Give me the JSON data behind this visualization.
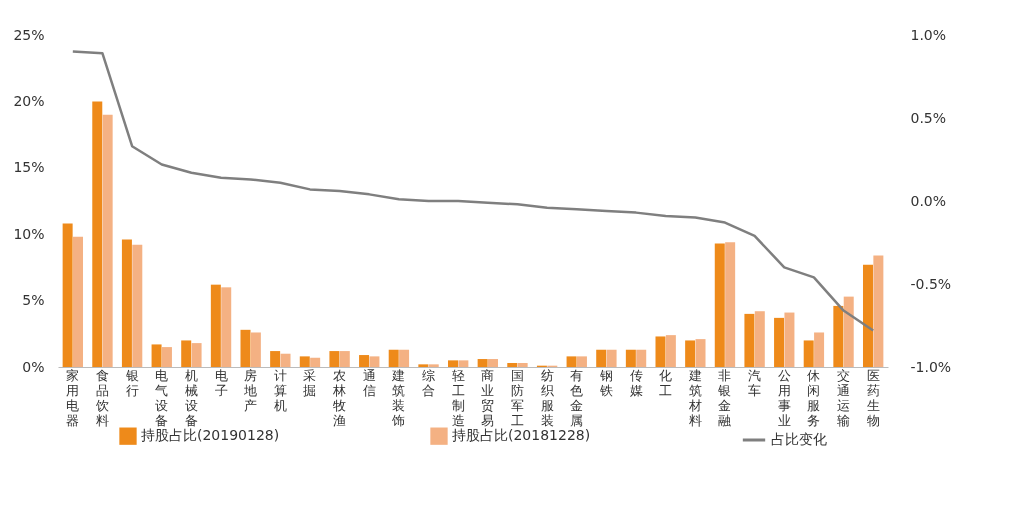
{
  "chart_data": {
    "type": "bar",
    "categories": [
      "家用电器",
      "食品饮料",
      "银行",
      "电气设备",
      "机械设备",
      "电子",
      "房地产",
      "计算机",
      "采掘",
      "农林牧渔",
      "通信",
      "建筑装饰",
      "综合",
      "轻工制造",
      "商业贸易",
      "国防军工",
      "纺织服装",
      "有色金属",
      "钢铁",
      "传媒",
      "化工",
      "建筑材料",
      "非银金融",
      "汽车",
      "公用事业",
      "休闲服务",
      "交通运输",
      "医药生物"
    ],
    "series": [
      {
        "name": "持股占比(20190128)",
        "color": "#ee8a1a",
        "values": [
          10.8,
          20.0,
          9.6,
          1.7,
          2.0,
          6.2,
          2.8,
          1.2,
          0.8,
          1.2,
          0.9,
          1.3,
          0.2,
          0.5,
          0.6,
          0.3,
          0.1,
          0.8,
          1.3,
          1.3,
          2.3,
          2.0,
          9.3,
          4.0,
          3.7,
          2.0,
          4.6,
          7.7
        ]
      },
      {
        "name": "持股占比(20181228)",
        "color": "#f4b183",
        "values": [
          9.8,
          19.0,
          9.2,
          1.5,
          1.8,
          6.0,
          2.6,
          1.0,
          0.7,
          1.2,
          0.8,
          1.3,
          0.2,
          0.5,
          0.6,
          0.3,
          0.1,
          0.8,
          1.3,
          1.3,
          2.4,
          2.1,
          9.4,
          4.2,
          4.1,
          2.6,
          5.3,
          8.4
        ]
      },
      {
        "name": "占比变化",
        "type": "line",
        "axis": "y2",
        "color": "#7f7f7f",
        "values": [
          0.9,
          0.89,
          0.33,
          0.22,
          0.17,
          0.14,
          0.13,
          0.11,
          0.07,
          0.06,
          0.04,
          0.01,
          0.0,
          0.0,
          -0.01,
          -0.02,
          -0.04,
          -0.05,
          -0.06,
          -0.07,
          -0.09,
          -0.1,
          -0.13,
          -0.21,
          -0.4,
          -0.46,
          -0.66,
          -0.78
        ]
      }
    ],
    "ylim": [
      0,
      25
    ],
    "yticks": [
      {
        "value": 0,
        "label": "0%"
      },
      {
        "value": 5,
        "label": "5%"
      },
      {
        "value": 10,
        "label": "10%"
      },
      {
        "value": 15,
        "label": "15%"
      },
      {
        "value": 20,
        "label": "20%"
      },
      {
        "value": 25,
        "label": "25%"
      }
    ],
    "y2lim": [
      -1.0,
      1.0
    ],
    "y2ticks": [
      {
        "value": -1.0,
        "label": "-1.0%"
      },
      {
        "value": -0.5,
        "label": "-0.5%"
      },
      {
        "value": 0,
        "label": "0.0%"
      },
      {
        "value": 0.5,
        "label": "0.5%"
      },
      {
        "value": 1.0,
        "label": "1.0%"
      }
    ],
    "legend": "bottom",
    "grid": false
  }
}
